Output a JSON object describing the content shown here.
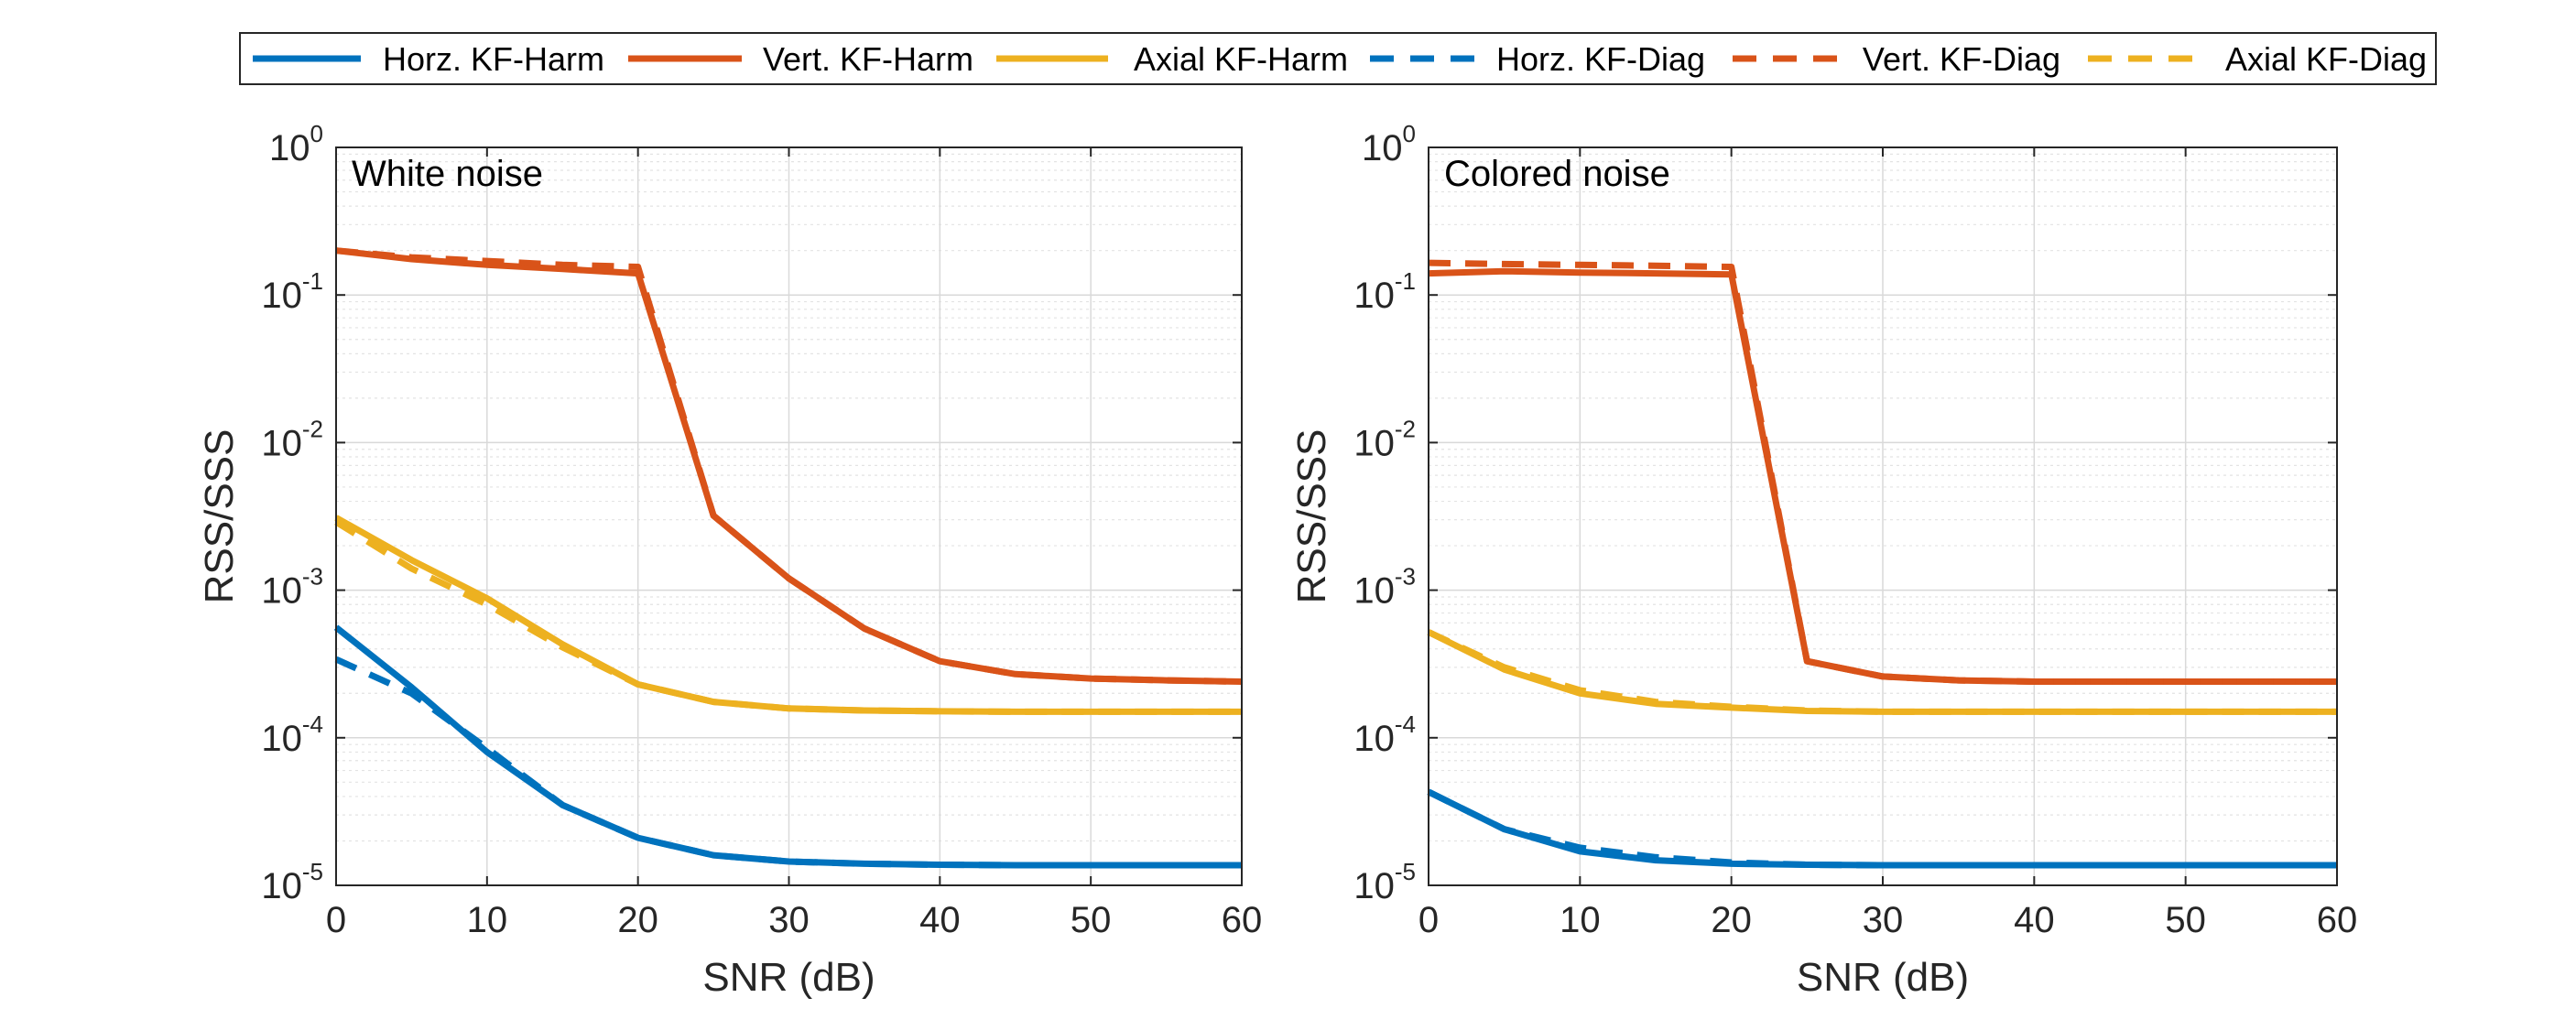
{
  "legend": {
    "entries": [
      {
        "label": "Horz. KF-Harm",
        "color": "#0072BD",
        "dash": false
      },
      {
        "label": "Vert. KF-Harm",
        "color": "#D95319",
        "dash": false
      },
      {
        "label": "Axial KF-Harm",
        "color": "#EDB120",
        "dash": false
      },
      {
        "label": "Horz. KF-Diag",
        "color": "#0072BD",
        "dash": true
      },
      {
        "label": "Vert. KF-Diag",
        "color": "#D95319",
        "dash": true
      },
      {
        "label": "Axial KF-Diag",
        "color": "#EDB120",
        "dash": true
      }
    ]
  },
  "chart_data": [
    {
      "type": "line",
      "title": "White noise",
      "xlabel": "SNR (dB)",
      "ylabel": "RSS/SSS",
      "yscale": "log",
      "xlim": [
        0,
        60
      ],
      "ylim": [
        1e-05,
        1
      ],
      "xticks": [
        "0",
        "10",
        "20",
        "30",
        "40",
        "50",
        "60"
      ],
      "yticks": [
        {
          "base": "10",
          "exp": "-5"
        },
        {
          "base": "10",
          "exp": "-4"
        },
        {
          "base": "10",
          "exp": "-3"
        },
        {
          "base": "10",
          "exp": "-2"
        },
        {
          "base": "10",
          "exp": "-1"
        },
        {
          "base": "10",
          "exp": "0"
        }
      ],
      "grid": true,
      "x": [
        0,
        5,
        10,
        15,
        20,
        25,
        30,
        35,
        40,
        45,
        50,
        55,
        60
      ],
      "series": [
        {
          "name": "Horz. KF-Harm",
          "color": "#0072BD",
          "dash": false,
          "values": [
            0.00056,
            0.00022,
            8e-05,
            3.5e-05,
            2.1e-05,
            1.6e-05,
            1.45e-05,
            1.4e-05,
            1.38e-05,
            1.37e-05,
            1.37e-05,
            1.37e-05,
            1.37e-05
          ]
        },
        {
          "name": "Vert. KF-Harm",
          "color": "#D95319",
          "dash": false,
          "values": [
            0.2,
            0.175,
            0.16,
            0.15,
            0.14,
            0.0032,
            0.0012,
            0.00055,
            0.00033,
            0.00027,
            0.000252,
            0.000245,
            0.00024
          ]
        },
        {
          "name": "Axial KF-Harm",
          "color": "#EDB120",
          "dash": false,
          "values": [
            0.0031,
            0.0016,
            0.00088,
            0.00043,
            0.00023,
            0.000175,
            0.000158,
            0.000153,
            0.000151,
            0.00015,
            0.00015,
            0.00015,
            0.00015
          ]
        },
        {
          "name": "Horz. KF-Diag",
          "color": "#0072BD",
          "dash": true,
          "values": [
            0.00034,
            0.0002,
            8.5e-05,
            3.5e-05,
            2.1e-05,
            1.6e-05,
            1.45e-05,
            1.4e-05,
            1.38e-05,
            1.37e-05,
            1.37e-05,
            1.37e-05,
            1.37e-05
          ]
        },
        {
          "name": "Vert. KF-Diag",
          "color": "#D95319",
          "dash": true,
          "values": [
            0.2,
            0.18,
            0.17,
            0.16,
            0.155,
            0.0032,
            0.0012,
            0.00055,
            0.00033,
            0.00027,
            0.000252,
            0.000245,
            0.00024
          ]
        },
        {
          "name": "Axial KF-Diag",
          "color": "#EDB120",
          "dash": true,
          "values": [
            0.0029,
            0.0014,
            0.0008,
            0.00041,
            0.00023,
            0.000175,
            0.000158,
            0.000153,
            0.000151,
            0.00015,
            0.00015,
            0.00015,
            0.00015
          ]
        }
      ]
    },
    {
      "type": "line",
      "title": "Colored noise",
      "xlabel": "SNR (dB)",
      "ylabel": "RSS/SSS",
      "yscale": "log",
      "xlim": [
        0,
        60
      ],
      "ylim": [
        1e-05,
        1
      ],
      "xticks": [
        "0",
        "10",
        "20",
        "30",
        "40",
        "50",
        "60"
      ],
      "yticks": [
        {
          "base": "10",
          "exp": "-5"
        },
        {
          "base": "10",
          "exp": "-4"
        },
        {
          "base": "10",
          "exp": "-3"
        },
        {
          "base": "10",
          "exp": "-2"
        },
        {
          "base": "10",
          "exp": "-1"
        },
        {
          "base": "10",
          "exp": "0"
        }
      ],
      "grid": true,
      "x": [
        0,
        5,
        10,
        15,
        20,
        25,
        30,
        35,
        40,
        45,
        50,
        55,
        60
      ],
      "series": [
        {
          "name": "Horz. KF-Harm",
          "color": "#0072BD",
          "dash": false,
          "values": [
            4.3e-05,
            2.4e-05,
            1.7e-05,
            1.48e-05,
            1.4e-05,
            1.38e-05,
            1.37e-05,
            1.37e-05,
            1.37e-05,
            1.37e-05,
            1.37e-05,
            1.37e-05,
            1.37e-05
          ]
        },
        {
          "name": "Vert. KF-Harm",
          "color": "#D95319",
          "dash": false,
          "values": [
            0.14,
            0.145,
            0.142,
            0.14,
            0.138,
            0.00033,
            0.00026,
            0.000245,
            0.00024,
            0.00024,
            0.00024,
            0.00024,
            0.00024
          ]
        },
        {
          "name": "Axial KF-Harm",
          "color": "#EDB120",
          "dash": false,
          "values": [
            0.00052,
            0.00029,
            0.0002,
            0.00017,
            0.00016,
            0.000152,
            0.00015,
            0.00015,
            0.00015,
            0.00015,
            0.00015,
            0.00015,
            0.00015
          ]
        },
        {
          "name": "Horz. KF-Diag",
          "color": "#0072BD",
          "dash": true,
          "values": [
            4.3e-05,
            2.4e-05,
            1.8e-05,
            1.55e-05,
            1.43e-05,
            1.38e-05,
            1.37e-05,
            1.37e-05,
            1.37e-05,
            1.37e-05,
            1.37e-05,
            1.37e-05,
            1.37e-05
          ]
        },
        {
          "name": "Vert. KF-Diag",
          "color": "#D95319",
          "dash": true,
          "values": [
            0.165,
            0.162,
            0.16,
            0.158,
            0.155,
            0.00033,
            0.00026,
            0.000245,
            0.00024,
            0.00024,
            0.00024,
            0.00024,
            0.00024
          ]
        },
        {
          "name": "Axial KF-Diag",
          "color": "#EDB120",
          "dash": true,
          "values": [
            0.00052,
            0.0003,
            0.00021,
            0.000175,
            0.000162,
            0.000153,
            0.00015,
            0.00015,
            0.00015,
            0.00015,
            0.00015,
            0.00015,
            0.00015
          ]
        }
      ]
    }
  ]
}
